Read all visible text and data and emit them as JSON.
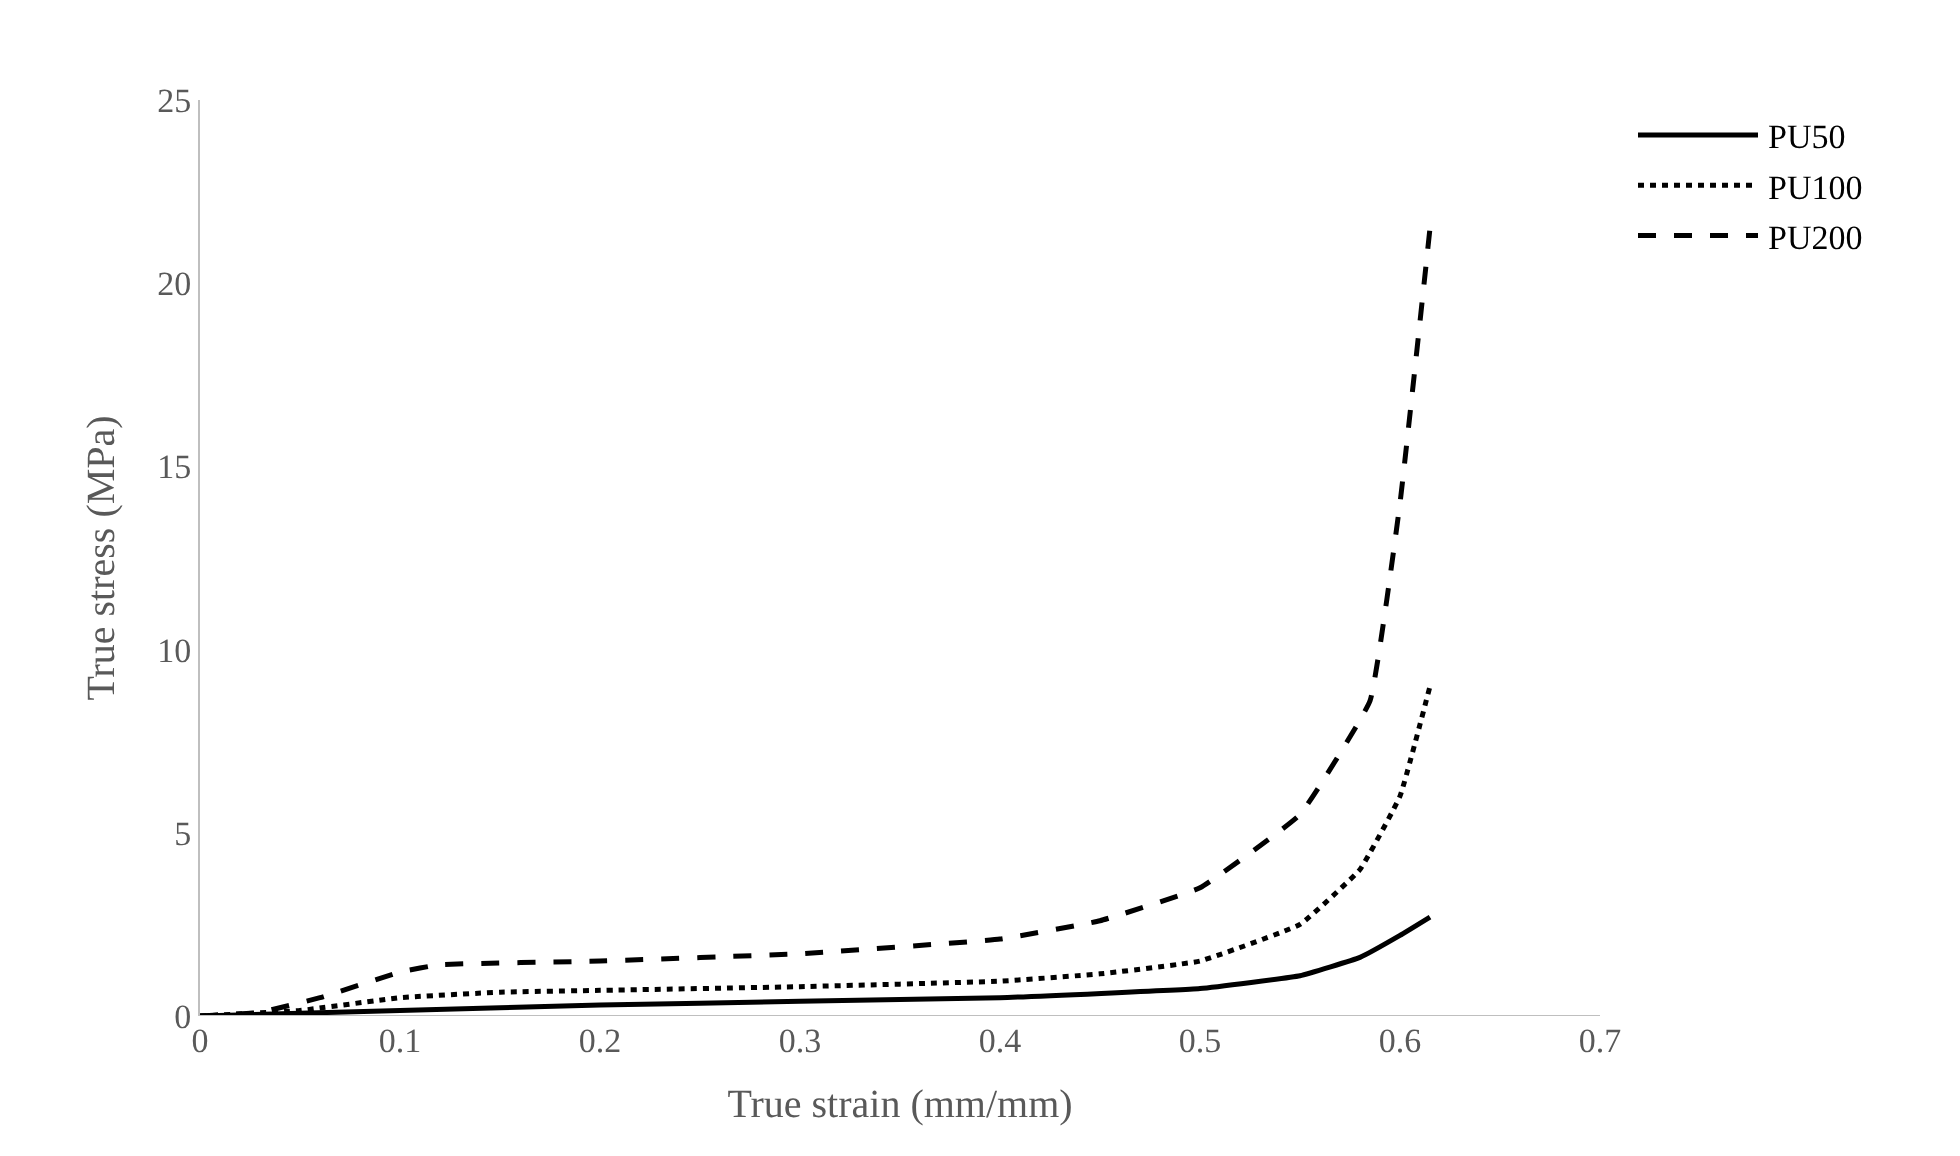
{
  "chart_data": {
    "type": "line",
    "xlabel": "True strain (mm/mm)",
    "ylabel": "True stress (MPa)",
    "xlim": [
      0,
      0.7
    ],
    "xticks": [
      0,
      0.1,
      0.2,
      0.3,
      0.4,
      0.5,
      0.6,
      0.7
    ],
    "ylim": [
      0,
      25
    ],
    "yticks": [
      0,
      5,
      10,
      15,
      20,
      25
    ],
    "grid": false,
    "legend": "top right",
    "marker": "none",
    "series": [
      {
        "name": "PU50",
        "color": "#000000",
        "line_style": "solid",
        "x": [
          0,
          0.1,
          0.2,
          0.3,
          0.4,
          0.5,
          0.55,
          0.58,
          0.6,
          0.615
        ],
        "values": [
          0,
          0.15,
          0.3,
          0.4,
          0.5,
          0.75,
          1.1,
          1.6,
          2.2,
          2.7
        ]
      },
      {
        "name": "PU100",
        "color": "#000000",
        "line_style": "dotted",
        "x": [
          0,
          0.05,
          0.1,
          0.15,
          0.2,
          0.3,
          0.4,
          0.45,
          0.5,
          0.55,
          0.58,
          0.6,
          0.615
        ],
        "values": [
          0,
          0.15,
          0.5,
          0.65,
          0.7,
          0.8,
          0.95,
          1.15,
          1.5,
          2.5,
          4,
          6,
          9
        ]
      },
      {
        "name": "PU200",
        "color": "#000000",
        "line_style": "dashed",
        "x": [
          0,
          0.03,
          0.06,
          0.1,
          0.12,
          0.2,
          0.3,
          0.4,
          0.45,
          0.5,
          0.55,
          0.585,
          0.6,
          0.615
        ],
        "values": [
          0,
          0.1,
          0.5,
          1.2,
          1.4,
          1.5,
          1.7,
          2.1,
          2.6,
          3.5,
          5.5,
          8.6,
          14,
          21.5
        ]
      }
    ]
  }
}
